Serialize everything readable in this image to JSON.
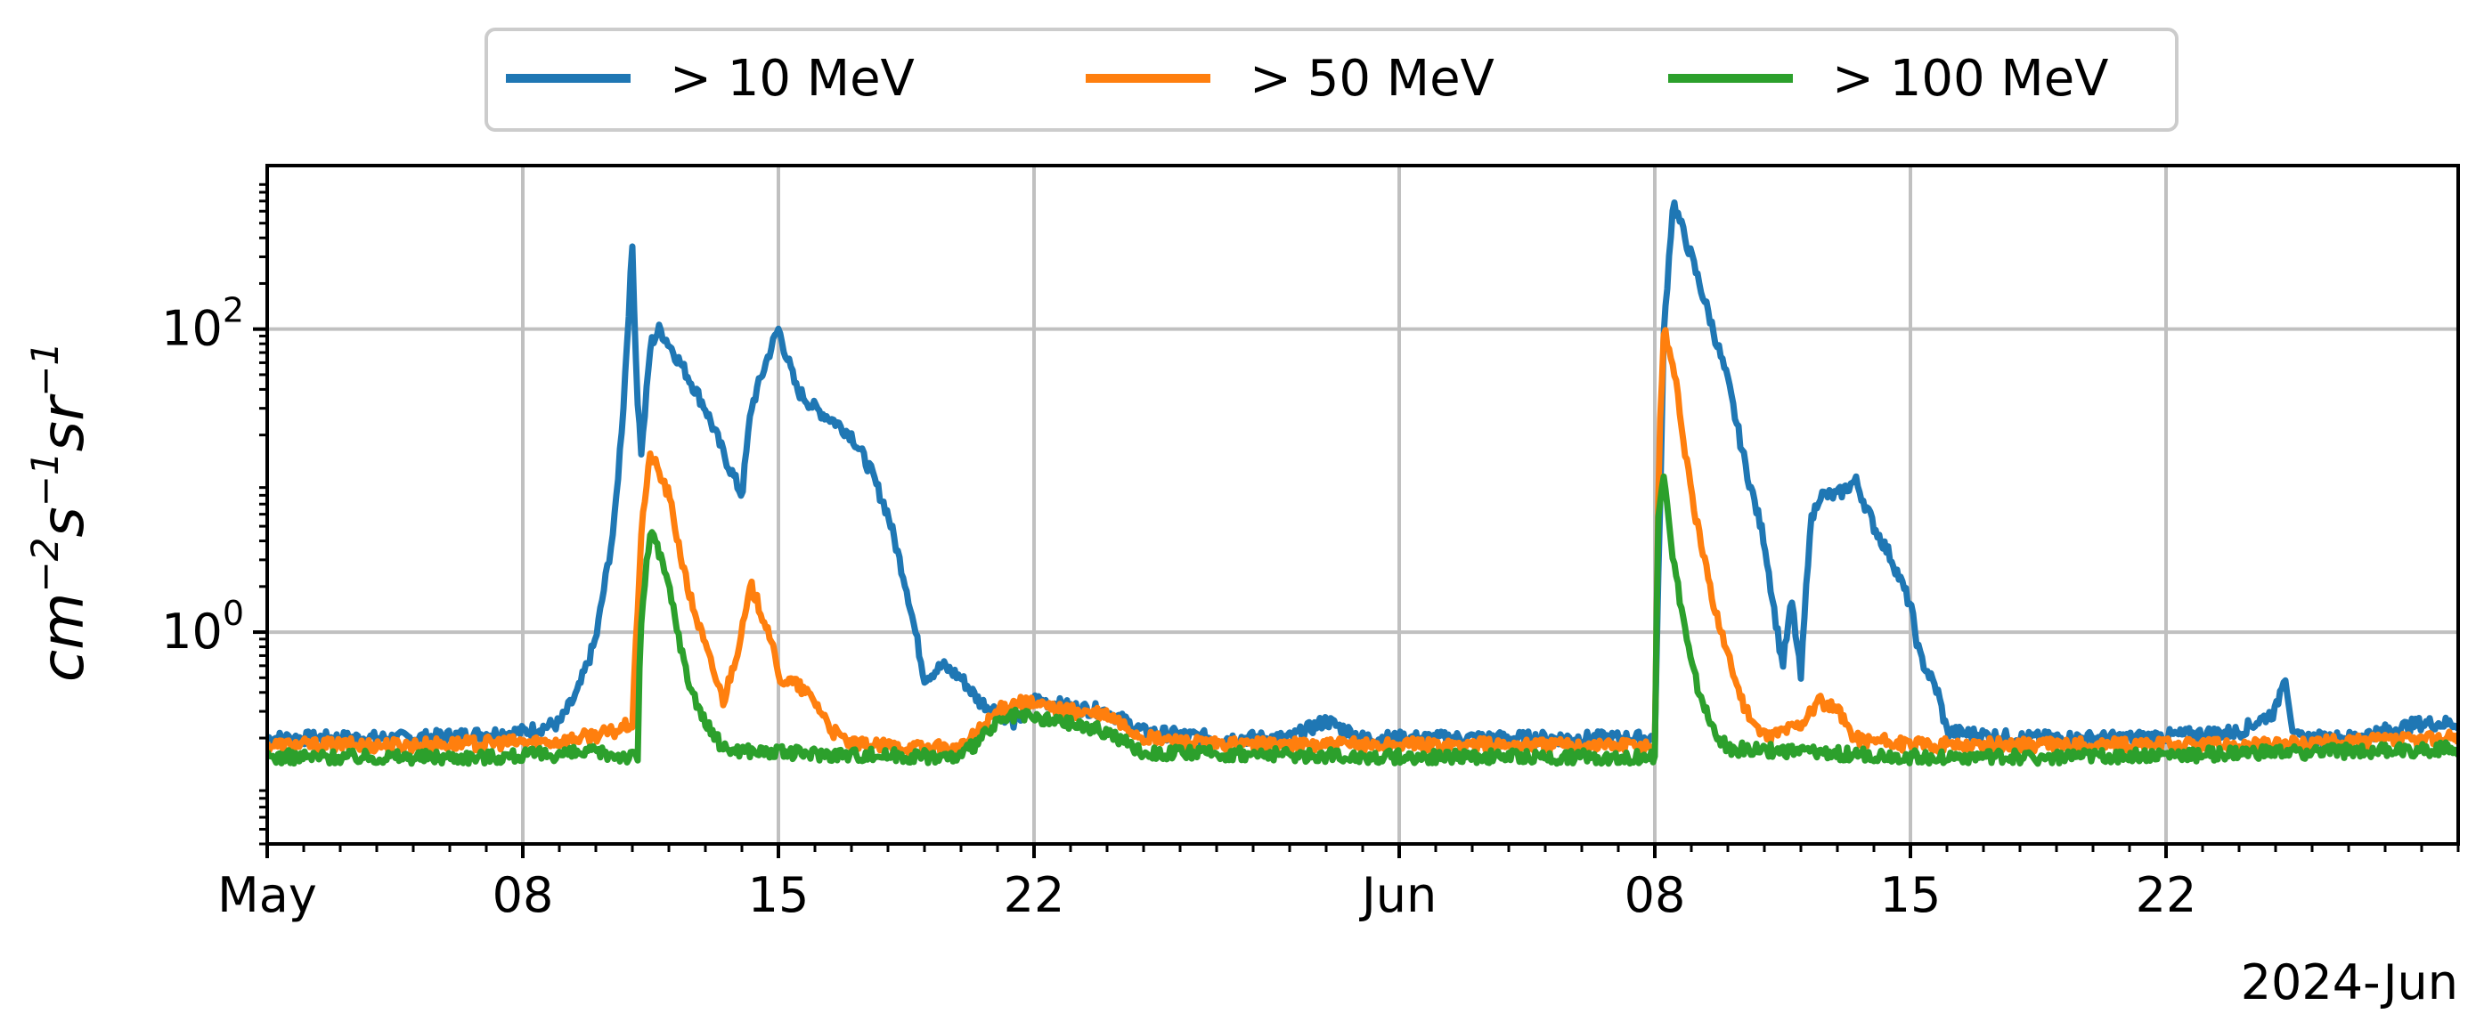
{
  "chart_data": {
    "type": "line",
    "ylabel": "cm^-2 s^-1 sr^-1",
    "yscale": "log",
    "ylim": [
      0.04,
      1200
    ],
    "xlim": [
      "2024-05-01",
      "2024-06-30"
    ],
    "x_tick_labels": [
      "May",
      "08",
      "15",
      "22",
      "Jun",
      "08",
      "15",
      "22"
    ],
    "y_tick_labels": [
      {
        "value": 1,
        "base": "10",
        "exp": "0"
      },
      {
        "value": 100,
        "base": "10",
        "exp": "2"
      }
    ],
    "corner_label": "2024-Jun",
    "grid": true,
    "legend_position": "top-center",
    "series": [
      {
        "name": ">  10 MeV",
        "color": "#1f77b4",
        "points": [
          [
            "2024-05-01",
            0.2
          ],
          [
            "2024-05-05",
            0.2
          ],
          [
            "2024-05-08",
            0.22
          ],
          [
            "2024-05-09",
            0.25
          ],
          [
            "2024-05-09 12:00",
            0.4
          ],
          [
            "2024-05-10",
            0.9
          ],
          [
            "2024-05-10 12:00",
            5
          ],
          [
            "2024-05-10 18:00",
            30
          ],
          [
            "2024-05-11",
            350
          ],
          [
            "2024-05-11 03:00",
            40
          ],
          [
            "2024-05-11 06:00",
            15
          ],
          [
            "2024-05-11 12:00",
            80
          ],
          [
            "2024-05-11 18:00",
            100
          ],
          [
            "2024-05-12",
            80
          ],
          [
            "2024-05-12 12:00",
            50
          ],
          [
            "2024-05-13",
            30
          ],
          [
            "2024-05-13 12:00",
            15
          ],
          [
            "2024-05-14",
            8
          ],
          [
            "2024-05-14 06:00",
            30
          ],
          [
            "2024-05-14 18:00",
            70
          ],
          [
            "2024-05-15",
            100
          ],
          [
            "2024-05-15 12:00",
            40
          ],
          [
            "2024-05-16",
            30
          ],
          [
            "2024-05-16 12:00",
            25
          ],
          [
            "2024-05-17",
            20
          ],
          [
            "2024-05-17 12:00",
            12
          ],
          [
            "2024-05-18",
            6
          ],
          [
            "2024-05-18 12:00",
            2
          ],
          [
            "2024-05-19",
            0.5
          ],
          [
            "2024-05-19 12:00",
            0.6
          ],
          [
            "2024-05-20",
            0.5
          ],
          [
            "2024-05-20 12:00",
            0.35
          ],
          [
            "2024-05-21",
            0.3
          ],
          [
            "2024-05-21 12:00",
            0.25
          ],
          [
            "2024-05-22",
            0.36
          ],
          [
            "2024-05-23",
            0.32
          ],
          [
            "2024-05-24",
            0.3
          ],
          [
            "2024-05-25",
            0.22
          ],
          [
            "2024-05-27",
            0.2
          ],
          [
            "2024-05-29",
            0.2
          ],
          [
            "2024-05-30",
            0.26
          ],
          [
            "2024-05-31",
            0.2
          ],
          [
            "2024-06-03",
            0.2
          ],
          [
            "2024-06-06",
            0.2
          ],
          [
            "2024-06-08",
            0.2
          ],
          [
            "2024-06-08 06:00",
            100
          ],
          [
            "2024-06-08 12:00",
            700
          ],
          [
            "2024-06-09",
            300
          ],
          [
            "2024-06-09 12:00",
            120
          ],
          [
            "2024-06-10",
            45
          ],
          [
            "2024-06-10 12:00",
            12
          ],
          [
            "2024-06-11",
            4
          ],
          [
            "2024-06-11 06:00",
            1.5
          ],
          [
            "2024-06-11 12:00",
            0.6
          ],
          [
            "2024-06-11 18:00",
            1.6
          ],
          [
            "2024-06-12",
            0.5
          ],
          [
            "2024-06-12 06:00",
            5
          ],
          [
            "2024-06-12 12:00",
            8
          ],
          [
            "2024-06-13",
            8
          ],
          [
            "2024-06-13 12:00",
            10
          ],
          [
            "2024-06-14",
            5
          ],
          [
            "2024-06-14 12:00",
            3
          ],
          [
            "2024-06-15",
            1.5
          ],
          [
            "2024-06-15 06:00",
            0.7
          ],
          [
            "2024-06-15 18:00",
            0.4
          ],
          [
            "2024-06-16",
            0.22
          ],
          [
            "2024-06-18",
            0.2
          ],
          [
            "2024-06-21",
            0.2
          ],
          [
            "2024-06-24",
            0.22
          ],
          [
            "2024-06-25",
            0.3
          ],
          [
            "2024-06-25 06:00",
            0.55
          ],
          [
            "2024-06-25 12:00",
            0.2
          ],
          [
            "2024-06-27",
            0.2
          ],
          [
            "2024-06-29",
            0.25
          ],
          [
            "2024-06-30",
            0.25
          ]
        ]
      },
      {
        "name": ">  50 MeV",
        "color": "#ff7f0e",
        "points": [
          [
            "2024-05-01",
            0.18
          ],
          [
            "2024-05-05",
            0.18
          ],
          [
            "2024-05-09",
            0.19
          ],
          [
            "2024-05-10 12:00",
            0.22
          ],
          [
            "2024-05-11",
            0.25
          ],
          [
            "2024-05-11 06:00",
            5
          ],
          [
            "2024-05-11 12:00",
            15
          ],
          [
            "2024-05-12",
            8
          ],
          [
            "2024-05-12 12:00",
            2
          ],
          [
            "2024-05-13",
            0.8
          ],
          [
            "2024-05-13 12:00",
            0.35
          ],
          [
            "2024-05-14",
            1
          ],
          [
            "2024-05-14 06:00",
            2
          ],
          [
            "2024-05-14 18:00",
            1
          ],
          [
            "2024-05-15",
            0.5
          ],
          [
            "2024-05-15 12:00",
            0.45
          ],
          [
            "2024-05-16",
            0.35
          ],
          [
            "2024-05-16 12:00",
            0.22
          ],
          [
            "2024-05-17",
            0.18
          ],
          [
            "2024-05-20",
            0.17
          ],
          [
            "2024-05-21",
            0.3
          ],
          [
            "2024-05-21 12:00",
            0.35
          ],
          [
            "2024-05-22",
            0.33
          ],
          [
            "2024-05-23",
            0.3
          ],
          [
            "2024-05-24",
            0.28
          ],
          [
            "2024-05-25",
            0.2
          ],
          [
            "2024-05-27",
            0.18
          ],
          [
            "2024-06-01",
            0.18
          ],
          [
            "2024-06-05",
            0.18
          ],
          [
            "2024-06-08",
            0.18
          ],
          [
            "2024-06-08 03:00",
            20
          ],
          [
            "2024-06-08 06:00",
            100
          ],
          [
            "2024-06-08 12:00",
            60
          ],
          [
            "2024-06-09",
            8
          ],
          [
            "2024-06-09 12:00",
            2
          ],
          [
            "2024-06-10",
            0.7
          ],
          [
            "2024-06-10 12:00",
            0.3
          ],
          [
            "2024-06-11",
            0.2
          ],
          [
            "2024-06-12",
            0.25
          ],
          [
            "2024-06-12 12:00",
            0.35
          ],
          [
            "2024-06-13",
            0.3
          ],
          [
            "2024-06-13 12:00",
            0.2
          ],
          [
            "2024-06-15",
            0.18
          ],
          [
            "2024-06-20",
            0.18
          ],
          [
            "2024-06-25",
            0.18
          ],
          [
            "2024-06-30",
            0.2
          ]
        ]
      },
      {
        "name": "> 100 MeV",
        "color": "#2ca02c",
        "points": [
          [
            "2024-05-01",
            0.15
          ],
          [
            "2024-05-07",
            0.15
          ],
          [
            "2024-05-10",
            0.16
          ],
          [
            "2024-05-11",
            0.15
          ],
          [
            "2024-05-11 04:00",
            0.15
          ],
          [
            "2024-05-11 05:00",
            1
          ],
          [
            "2024-05-11 12:00",
            5
          ],
          [
            "2024-05-12",
            2
          ],
          [
            "2024-05-12 12:00",
            0.5
          ],
          [
            "2024-05-13",
            0.25
          ],
          [
            "2024-05-13 12:00",
            0.17
          ],
          [
            "2024-05-15",
            0.16
          ],
          [
            "2024-05-20",
            0.15
          ],
          [
            "2024-05-21",
            0.25
          ],
          [
            "2024-05-21 12:00",
            0.28
          ],
          [
            "2024-05-22",
            0.27
          ],
          [
            "2024-05-23",
            0.25
          ],
          [
            "2024-05-24",
            0.22
          ],
          [
            "2024-05-25",
            0.16
          ],
          [
            "2024-06-01",
            0.15
          ],
          [
            "2024-06-08",
            0.15
          ],
          [
            "2024-06-08 02:00",
            5
          ],
          [
            "2024-06-08 06:00",
            12
          ],
          [
            "2024-06-08 12:00",
            3
          ],
          [
            "2024-06-09",
            0.6
          ],
          [
            "2024-06-09 12:00",
            0.25
          ],
          [
            "2024-06-10",
            0.17
          ],
          [
            "2024-06-15",
            0.15
          ],
          [
            "2024-06-20",
            0.15
          ],
          [
            "2024-06-25",
            0.16
          ],
          [
            "2024-06-30",
            0.17
          ]
        ]
      }
    ]
  }
}
